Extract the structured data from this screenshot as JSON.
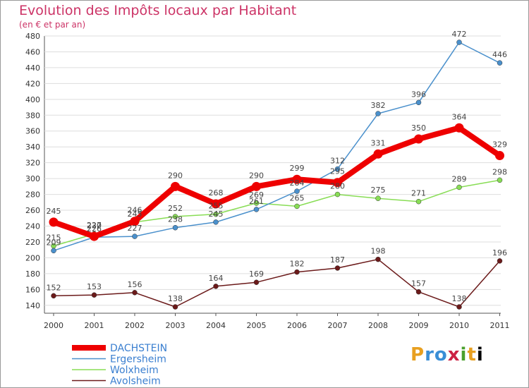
{
  "chart_data": {
    "type": "line",
    "title": "Evolution des Impôts locaux par Habitant",
    "subtitle": "(en € et par an)",
    "x": [
      "2000",
      "2001",
      "2002",
      "2003",
      "2004",
      "2005",
      "2006",
      "2007",
      "2008",
      "2009",
      "2010",
      "2011"
    ],
    "ylim": [
      130,
      480
    ],
    "yticks": [
      140,
      160,
      180,
      200,
      220,
      240,
      260,
      280,
      300,
      320,
      340,
      360,
      380,
      400,
      420,
      440,
      460,
      480
    ],
    "series": [
      {
        "name": "DACHSTEIN",
        "color": "#ee0000",
        "values": [
          245,
          227,
          246,
          290,
          268,
          290,
          299,
          295,
          331,
          350,
          364,
          329
        ]
      },
      {
        "name": "Ergersheim",
        "color": "#4a90cc",
        "values": [
          209,
          226,
          227,
          238,
          245,
          261,
          284,
          312,
          382,
          396,
          472,
          446
        ]
      },
      {
        "name": "Wolxheim",
        "color": "#88dd55",
        "values": [
          215,
          230,
          245,
          252,
          255,
          269,
          265,
          280,
          275,
          271,
          289,
          298
        ]
      },
      {
        "name": "Avolsheim",
        "color": "#6b1a1a",
        "values": [
          152,
          153,
          156,
          138,
          164,
          169,
          182,
          187,
          198,
          157,
          138,
          196
        ]
      }
    ]
  },
  "logo": {
    "letters": [
      "P",
      "r",
      "o",
      "x",
      "i",
      "t",
      "i"
    ]
  }
}
